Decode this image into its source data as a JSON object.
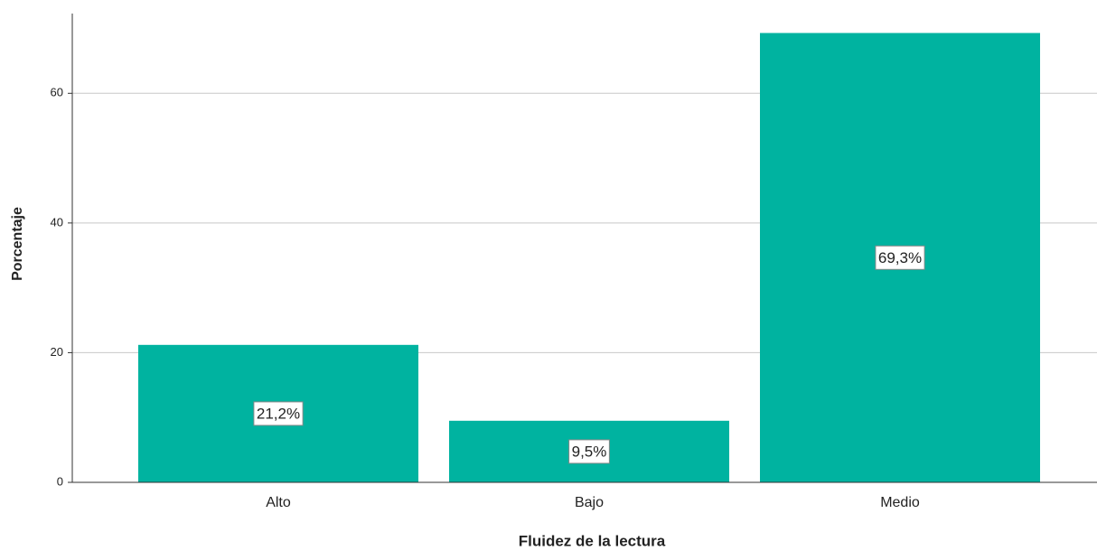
{
  "chart_data": {
    "type": "bar",
    "x_label": "Fluidez de la lectura",
    "y_label": "Porcentaje",
    "categories": [
      "Alto",
      "Bajo",
      "Medio"
    ],
    "values": [
      21.2,
      9.5,
      69.3
    ],
    "value_labels": [
      "21,2%",
      "9,5%",
      "69,3%"
    ],
    "color": "#00b3a0",
    "ylim": [
      0,
      72.3
    ],
    "yticks": [
      0,
      20,
      40,
      60
    ],
    "grid": true
  }
}
